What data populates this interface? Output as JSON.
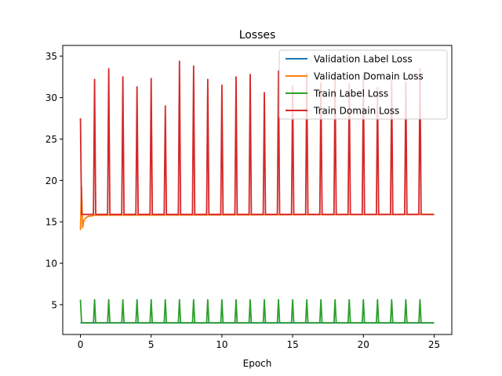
{
  "chart_data": {
    "type": "line",
    "title": "Losses",
    "xlabel": "Epoch",
    "ylabel": "",
    "xlim": [
      -1.25,
      26.25
    ],
    "ylim": [
      1.4,
      36.3
    ],
    "xticks": [
      0,
      5,
      10,
      15,
      20,
      25
    ],
    "yticks": [
      5,
      10,
      15,
      20,
      25,
      30,
      35
    ],
    "grid": false,
    "legend_position": "top-right",
    "series": [
      {
        "name": "Validation Label Loss",
        "color": "#1f77b4",
        "x": [
          0,
          25
        ],
        "y": [
          2.8,
          2.8
        ]
      },
      {
        "name": "Validation Domain Loss",
        "color": "#ff7f0e",
        "x": [
          0,
          0.08,
          0.15,
          0.25,
          0.4,
          0.6,
          0.8,
          1,
          25
        ],
        "y": [
          14.0,
          19.2,
          14.3,
          15.2,
          15.5,
          15.7,
          15.7,
          15.8,
          15.9
        ]
      },
      {
        "name": "Train Label Loss",
        "color": "#2ca02c",
        "x": [
          0,
          0.08,
          0.92,
          1,
          1.08,
          1.92,
          2,
          2.08,
          2.92,
          3,
          3.08,
          3.92,
          4,
          4.08,
          4.92,
          5,
          5.08,
          5.92,
          6,
          6.08,
          6.92,
          7,
          7.08,
          7.92,
          8,
          8.08,
          8.92,
          9,
          9.08,
          9.92,
          10,
          10.08,
          10.92,
          11,
          11.08,
          11.92,
          12,
          12.08,
          12.92,
          13,
          13.08,
          13.92,
          14,
          14.08,
          14.92,
          15,
          15.08,
          15.92,
          16,
          16.08,
          16.92,
          17,
          17.08,
          17.92,
          18,
          18.08,
          18.92,
          19,
          19.08,
          19.92,
          20,
          20.08,
          20.92,
          21,
          21.08,
          21.92,
          22,
          22.08,
          22.92,
          23,
          23.08,
          23.92,
          24,
          24.08,
          25
        ],
        "y": [
          5.6,
          2.8,
          2.8,
          5.6,
          2.8,
          2.8,
          5.6,
          2.8,
          2.8,
          5.6,
          2.8,
          2.8,
          5.6,
          2.8,
          2.8,
          5.6,
          2.8,
          2.8,
          5.6,
          2.8,
          2.8,
          5.6,
          2.8,
          2.8,
          5.6,
          2.8,
          2.8,
          5.6,
          2.8,
          2.8,
          5.6,
          2.8,
          2.8,
          5.6,
          2.8,
          2.8,
          5.6,
          2.8,
          2.8,
          5.6,
          2.8,
          2.8,
          5.6,
          2.8,
          2.8,
          5.6,
          2.8,
          2.8,
          5.6,
          2.8,
          2.8,
          5.6,
          2.8,
          2.8,
          5.6,
          2.8,
          2.8,
          5.6,
          2.8,
          2.8,
          5.6,
          2.8,
          2.8,
          5.6,
          2.8,
          2.8,
          5.6,
          2.8,
          2.8,
          5.6,
          2.8,
          2.8,
          5.6,
          2.8,
          2.8
        ]
      },
      {
        "name": "Train Domain Loss",
        "color": "#d62728",
        "x": [
          0,
          0.08,
          0.92,
          1,
          1.08,
          1.92,
          2,
          2.08,
          2.92,
          3,
          3.08,
          3.92,
          4,
          4.08,
          4.92,
          5,
          5.08,
          5.92,
          6,
          6.08,
          6.92,
          7,
          7.08,
          7.92,
          8,
          8.08,
          8.92,
          9,
          9.08,
          9.92,
          10,
          10.08,
          10.92,
          11,
          11.08,
          11.92,
          12,
          12.08,
          12.92,
          13,
          13.08,
          13.92,
          14,
          14.08,
          14.92,
          15,
          15.08,
          15.92,
          16,
          16.08,
          16.92,
          17,
          17.08,
          17.92,
          18,
          18.08,
          18.92,
          19,
          19.08,
          19.92,
          20,
          20.08,
          20.92,
          21,
          21.08,
          21.92,
          22,
          22.08,
          22.92,
          23,
          23.08,
          23.92,
          24,
          24.08,
          25
        ],
        "y": [
          27.5,
          15.9,
          15.9,
          32.2,
          15.9,
          15.9,
          33.5,
          15.9,
          15.9,
          32.5,
          15.9,
          15.9,
          31.3,
          15.9,
          15.9,
          32.3,
          15.9,
          15.9,
          29.0,
          15.9,
          15.9,
          34.4,
          15.9,
          15.9,
          33.8,
          15.9,
          15.9,
          32.2,
          15.9,
          15.9,
          31.5,
          15.9,
          15.9,
          32.5,
          15.9,
          15.9,
          32.8,
          15.9,
          15.9,
          30.6,
          15.9,
          15.9,
          33.2,
          15.9,
          15.9,
          31.4,
          15.9,
          15.9,
          32.9,
          15.9,
          15.9,
          31.8,
          15.9,
          15.9,
          32.4,
          15.9,
          15.9,
          31.7,
          15.9,
          15.9,
          32.6,
          15.9,
          15.9,
          31.2,
          15.9,
          15.9,
          32.0,
          15.9,
          15.9,
          31.9,
          15.9,
          15.9,
          33.5,
          15.9,
          15.9
        ]
      }
    ]
  }
}
